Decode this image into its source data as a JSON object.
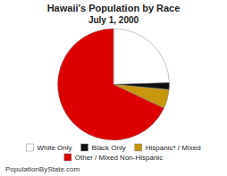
{
  "chart_data": {
    "type": "pie",
    "title": "Hawaii's Population by Race",
    "subtitle": "July 1, 2000",
    "categories": [
      "White Only",
      "Black Only",
      "Hispanic* / Mixed",
      "Other / Mixed Non-Hispanic"
    ],
    "values": [
      24.5,
      2.0,
      5.5,
      68.0
    ],
    "colors": [
      "#ffffff",
      "#111111",
      "#c8960c",
      "#dd0000"
    ],
    "legend": "bottom",
    "annotations": [
      "PopulationByState.com"
    ]
  }
}
